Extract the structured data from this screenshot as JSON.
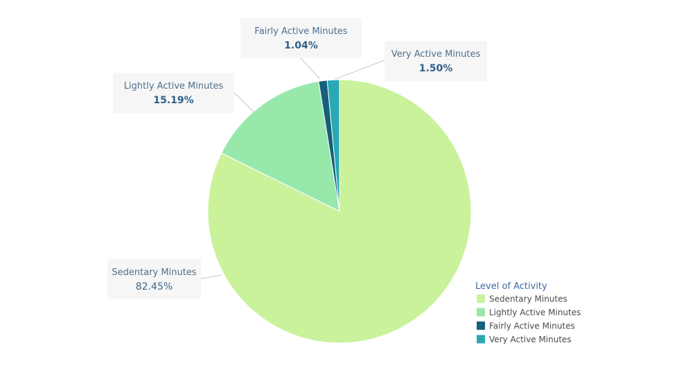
{
  "chart_data": {
    "type": "pie",
    "slices": [
      {
        "label": "Sedentary Minutes",
        "value": 82.45,
        "display": "82.45%",
        "color": "#c9f29b"
      },
      {
        "label": "Lightly Active Minutes",
        "value": 15.19,
        "display": "15.19%",
        "color": "#98e8ab"
      },
      {
        "label": "Fairly Active Minutes",
        "value": 1.04,
        "display": "1.04%",
        "color": "#15607a"
      },
      {
        "label": "Very Active Minutes",
        "value": 1.5,
        "display": "1.50%",
        "color": "#2aa9b4"
      }
    ],
    "legend": {
      "title": "Level of Activity",
      "placement": "bottom-right",
      "entries": [
        "Sedentary Minutes",
        "Lightly Active Minutes",
        "Fairly Active Minutes",
        "Very Active Minutes"
      ]
    }
  }
}
